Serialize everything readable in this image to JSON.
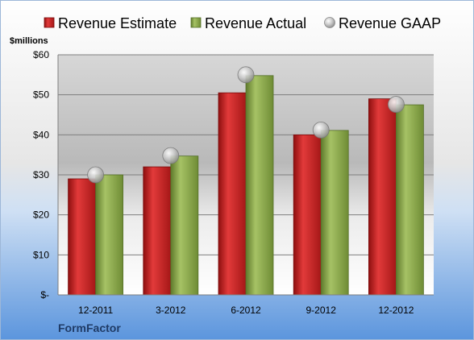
{
  "chart_data": {
    "type": "bar",
    "unit_label": "$millions",
    "categories": [
      "12-2011",
      "3-2012",
      "6-2012",
      "9-2012",
      "12-2012"
    ],
    "series": [
      {
        "name": "Revenue Estimate",
        "kind": "bar",
        "color": "#cc1f1f",
        "values": [
          29.0,
          32.0,
          50.5,
          40.0,
          49.0
        ]
      },
      {
        "name": "Revenue Actual",
        "kind": "bar",
        "color": "#8fae4a",
        "values": [
          30.0,
          34.7,
          54.8,
          41.1,
          47.5
        ]
      },
      {
        "name": "Revenue GAAP",
        "kind": "marker",
        "color": "#c8c8c8",
        "values": [
          30.0,
          34.8,
          55.0,
          41.2,
          47.6
        ]
      }
    ],
    "y_ticks": [
      {
        "value": 0,
        "label": "$-"
      },
      {
        "value": 10,
        "label": "$10"
      },
      {
        "value": 20,
        "label": "$20"
      },
      {
        "value": 30,
        "label": "$30"
      },
      {
        "value": 40,
        "label": "$40"
      },
      {
        "value": 50,
        "label": "$50"
      },
      {
        "value": 60,
        "label": "$60"
      }
    ],
    "ylim": [
      0,
      60
    ],
    "grid": true,
    "legend_position": "top",
    "company": "FormFactor"
  }
}
